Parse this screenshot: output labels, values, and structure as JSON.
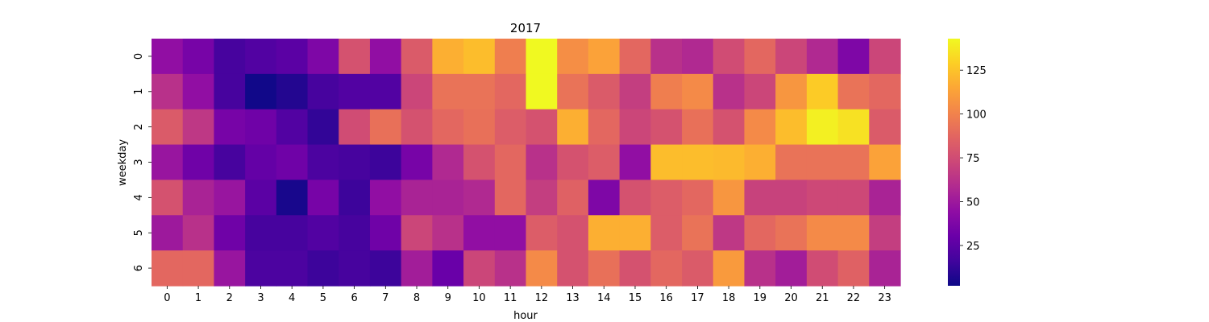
{
  "chart_data": {
    "type": "heatmap",
    "title": "2017",
    "xlabel": "hour",
    "ylabel": "weekday",
    "x_categories": [
      "0",
      "1",
      "2",
      "3",
      "4",
      "5",
      "6",
      "7",
      "8",
      "9",
      "10",
      "11",
      "12",
      "13",
      "14",
      "15",
      "16",
      "17",
      "18",
      "19",
      "20",
      "21",
      "22",
      "23"
    ],
    "y_categories": [
      "0",
      "1",
      "2",
      "3",
      "4",
      "5",
      "6"
    ],
    "colormap": "plasma",
    "color_range": [
      2,
      143
    ],
    "colorbar_ticks": [
      25,
      50,
      75,
      100,
      125
    ],
    "values": [
      [
        45,
        35,
        18,
        22,
        25,
        38,
        78,
        45,
        82,
        118,
        123,
        98,
        143,
        105,
        113,
        88,
        62,
        58,
        75,
        88,
        72,
        58,
        38,
        72
      ],
      [
        62,
        45,
        18,
        3,
        8,
        18,
        22,
        22,
        72,
        93,
        93,
        88,
        143,
        93,
        82,
        68,
        98,
        103,
        62,
        72,
        108,
        128,
        93,
        88
      ],
      [
        82,
        65,
        35,
        32,
        22,
        12,
        75,
        92,
        78,
        88,
        92,
        83,
        78,
        118,
        88,
        72,
        78,
        92,
        78,
        103,
        123,
        140,
        135,
        82
      ],
      [
        48,
        32,
        18,
        28,
        32,
        20,
        18,
        15,
        35,
        58,
        78,
        88,
        62,
        78,
        83,
        45,
        123,
        123,
        122,
        118,
        93,
        93,
        93,
        113
      ],
      [
        78,
        55,
        48,
        25,
        5,
        35,
        15,
        45,
        55,
        55,
        58,
        88,
        68,
        85,
        38,
        78,
        83,
        88,
        108,
        70,
        70,
        73,
        73,
        55
      ],
      [
        50,
        62,
        32,
        18,
        18,
        22,
        18,
        32,
        72,
        62,
        45,
        45,
        83,
        78,
        118,
        118,
        83,
        93,
        65,
        88,
        93,
        103,
        103,
        68
      ],
      [
        88,
        88,
        48,
        20,
        20,
        15,
        18,
        15,
        52,
        30,
        72,
        62,
        103,
        78,
        92,
        78,
        88,
        82,
        110,
        62,
        52,
        75,
        85,
        55
      ]
    ]
  }
}
